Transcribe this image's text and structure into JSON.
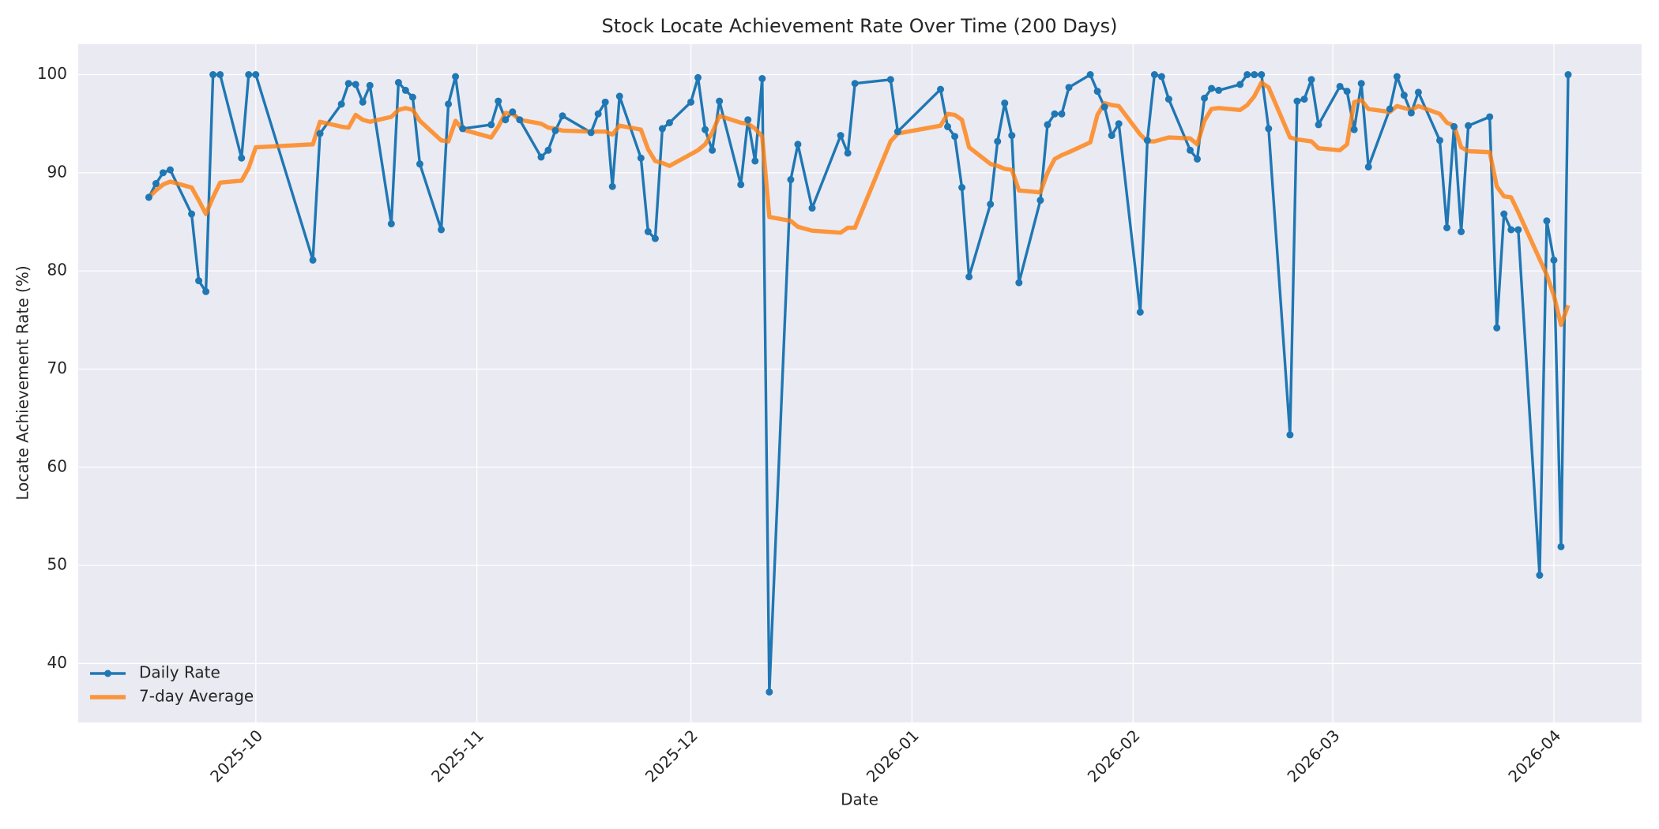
{
  "chart_data": {
    "type": "line",
    "title": "Stock Locate Achievement Rate Over Time (200 Days)",
    "x_label": "Date",
    "y_label": "Locate Achievement Rate (%)",
    "x": [
      -15,
      -14,
      -13,
      -12,
      -9,
      -8,
      -7,
      -6,
      -5,
      -2,
      -1,
      0,
      8,
      9,
      12,
      13,
      14,
      15,
      16,
      19,
      20,
      21,
      22,
      23,
      26,
      27,
      28,
      29,
      33,
      34,
      35,
      36,
      37,
      40,
      41,
      42,
      43,
      47,
      48,
      49,
      50,
      51,
      54,
      55,
      56,
      57,
      58,
      61,
      62,
      63,
      64,
      65,
      68,
      69,
      70,
      71,
      72,
      75,
      76,
      78,
      82,
      83,
      84,
      89,
      90,
      96,
      97,
      98,
      99,
      100,
      103,
      104,
      105,
      106,
      107,
      110,
      111,
      112,
      113,
      114,
      117,
      118,
      119,
      120,
      121,
      124,
      125,
      126,
      127,
      128,
      131,
      132,
      133,
      134,
      135,
      138,
      139,
      140,
      141,
      142,
      145,
      146,
      147,
      148,
      149,
      152,
      153,
      154,
      155,
      156,
      159,
      160,
      161,
      162,
      163,
      166,
      167,
      168,
      169,
      170,
      173,
      174,
      175,
      176,
      177,
      180,
      181,
      182,
      183,
      184
    ],
    "series": [
      {
        "name": "Daily Rate",
        "color": "#1f77b4",
        "marker": true,
        "values": [
          87.5,
          88.9,
          90.0,
          90.3,
          85.8,
          79.0,
          77.9,
          100,
          100,
          91.5,
          100,
          100,
          81.1,
          94.0,
          97.0,
          99.1,
          99.0,
          97.2,
          98.9,
          84.8,
          99.2,
          98.4,
          97.7,
          90.9,
          84.2,
          97.0,
          99.8,
          94.5,
          94.9,
          97.3,
          95.4,
          96.2,
          95.4,
          91.6,
          92.3,
          94.3,
          95.8,
          94.1,
          96.0,
          97.2,
          88.6,
          97.8,
          91.5,
          84.0,
          83.3,
          94.5,
          95.1,
          97.2,
          99.7,
          94.4,
          92.3,
          97.3,
          88.8,
          95.4,
          91.2,
          99.6,
          37.1,
          89.3,
          92.9,
          86.4,
          93.8,
          92.0,
          99.1,
          99.5,
          94.2,
          98.5,
          94.7,
          93.7,
          88.5,
          79.4,
          86.8,
          93.2,
          97.1,
          93.8,
          78.8,
          87.2,
          94.9,
          96.0,
          96.0,
          98.7,
          100,
          98.3,
          96.7,
          93.8,
          95.0,
          75.8,
          93.3,
          100,
          99.8,
          97.5,
          92.3,
          91.4,
          97.6,
          98.6,
          98.4,
          99.0,
          100,
          100,
          100,
          94.5,
          63.3,
          97.3,
          97.5,
          99.5,
          94.9,
          98.8,
          98.3,
          94.4,
          99.1,
          90.6,
          96.5,
          99.8,
          97.9,
          96.1,
          98.2,
          93.3,
          84.4,
          94.7,
          84.0,
          94.8,
          95.7,
          74.2,
          85.8,
          84.2,
          84.2,
          49.0,
          85.1,
          81.1,
          51.9,
          100
        ]
      },
      {
        "name": "7-day Average",
        "color": "#ff7f0e",
        "marker": false,
        "values": [
          87.5,
          88.2,
          88.8,
          89.1,
          88.5,
          87.2,
          85.8,
          87.5,
          89.0,
          89.2,
          90.5,
          92.6,
          92.9,
          95.2,
          94.7,
          94.6,
          95.9,
          95.4,
          95.2,
          95.7,
          96.4,
          96.6,
          96.4,
          95.3,
          93.3,
          93.2,
          95.3,
          94.4,
          93.6,
          94.7,
          96.1,
          96.0,
          95.4,
          95.0,
          94.6,
          94.5,
          94.3,
          94.2,
          94.2,
          94.2,
          93.9,
          94.8,
          94.4,
          92.4,
          91.2,
          91.0,
          90.7,
          91.9,
          92.3,
          92.9,
          94.1,
          95.8,
          95.1,
          95.0,
          94.5,
          93.7,
          85.5,
          85.1,
          84.5,
          84.1,
          83.9,
          84.4,
          84.4,
          93.2,
          94.0,
          94.8,
          96.0,
          95.9,
          95.4,
          92.6,
          90.9,
          90.7,
          90.4,
          90.3,
          88.2,
          88.0,
          90.0,
          91.4,
          91.8,
          92.1,
          93.1,
          95.9,
          97.1,
          96.9,
          96.8,
          93.9,
          93.2,
          93.2,
          93.4,
          93.6,
          93.5,
          92.9,
          95.3,
          96.5,
          96.6,
          96.4,
          96.9,
          97.8,
          99.2,
          98.7,
          93.6,
          93.4,
          93.3,
          93.2,
          92.5,
          92.3,
          92.9,
          97.2,
          97.4,
          96.5,
          96.2,
          96.8,
          96.6,
          96.4,
          96.8,
          96.0,
          95.1,
          94.8,
          92.6,
          92.2,
          92.1,
          88.6,
          87.6,
          87.5,
          86.0,
          81.2,
          79.6,
          77.5,
          74.5,
          76.5
        ]
      }
    ],
    "xlim": [
      -24.9,
      194.3
    ],
    "xticks": [
      {
        "value": 0,
        "label": "2025-10"
      },
      {
        "value": 31,
        "label": "2025-11"
      },
      {
        "value": 61,
        "label": "2025-12"
      },
      {
        "value": 92,
        "label": "2026-01"
      },
      {
        "value": 123,
        "label": "2026-02"
      },
      {
        "value": 151,
        "label": "2026-03"
      },
      {
        "value": 182,
        "label": "2026-04"
      }
    ],
    "ylim": [
      34,
      103.1
    ],
    "yticks": [
      40,
      50,
      60,
      70,
      80,
      90,
      100
    ],
    "grid": true,
    "legend": "lower left"
  }
}
